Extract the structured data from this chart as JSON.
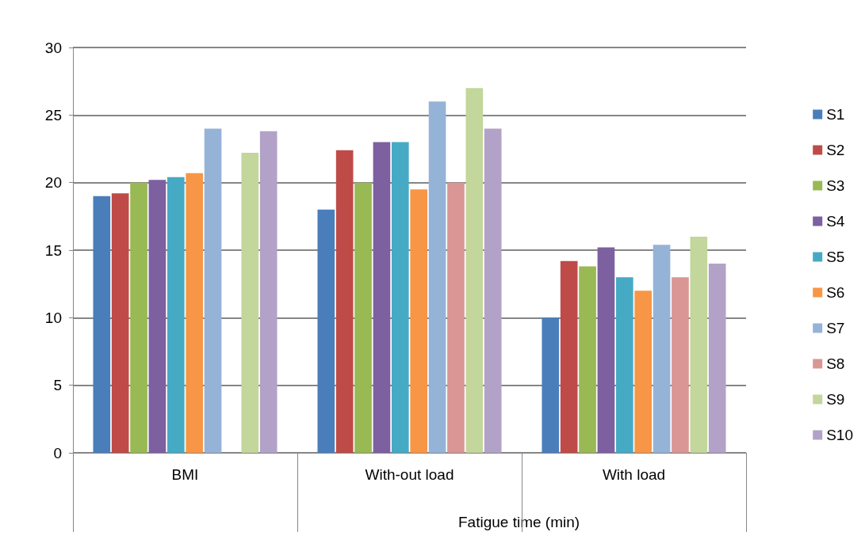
{
  "chart_data": {
    "type": "bar",
    "categories": [
      "BMI",
      "With-out load",
      "With load"
    ],
    "series": [
      {
        "name": "S1",
        "color": "#4a7ebb",
        "values": [
          19,
          18,
          10
        ]
      },
      {
        "name": "S2",
        "color": "#be4b48",
        "values": [
          19.2,
          22.4,
          14.2
        ]
      },
      {
        "name": "S3",
        "color": "#98b954",
        "values": [
          20,
          20,
          13.8
        ]
      },
      {
        "name": "S4",
        "color": "#7d60a0",
        "values": [
          20.2,
          23,
          15.2
        ]
      },
      {
        "name": "S5",
        "color": "#46aac5",
        "values": [
          20.4,
          23,
          13
        ]
      },
      {
        "name": "S6",
        "color": "#f79646",
        "values": [
          20.7,
          19.5,
          12
        ]
      },
      {
        "name": "S7",
        "color": "#95b3d7",
        "values": [
          24,
          26,
          15.4
        ]
      },
      {
        "name": "S8",
        "color": "#d99694",
        "values": [
          0,
          20,
          13
        ]
      },
      {
        "name": "S9",
        "color": "#c3d69b",
        "values": [
          22.2,
          27,
          16
        ]
      },
      {
        "name": "S10",
        "color": "#b3a2c7",
        "values": [
          23.8,
          24,
          14
        ]
      }
    ],
    "ylim": [
      0,
      30
    ],
    "yticks": [
      0,
      5,
      10,
      15,
      20,
      25,
      30
    ],
    "grid": "y",
    "legend": "right",
    "annotations": [
      "Fatigue time (min)"
    ]
  }
}
